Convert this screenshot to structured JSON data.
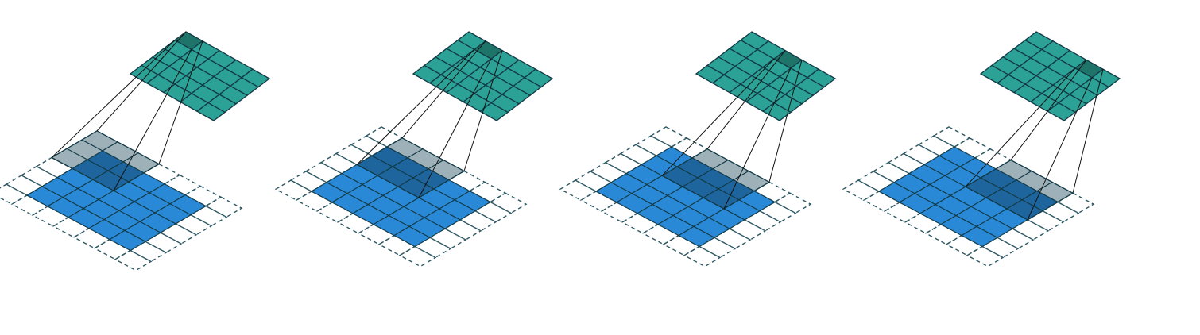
{
  "diagram": {
    "kind": "convolution-animation-frames",
    "frame_count": 4,
    "input": {
      "size": 5,
      "padding": 1,
      "padded_size": 7
    },
    "kernel": {
      "size": 3
    },
    "output": {
      "size": 5
    },
    "frames": [
      {
        "output_cell": [
          0,
          0
        ],
        "window_origin": [
          0,
          0
        ]
      },
      {
        "output_cell": [
          0,
          1
        ],
        "window_origin": [
          0,
          1
        ]
      },
      {
        "output_cell": [
          0,
          2
        ],
        "window_origin": [
          0,
          2
        ]
      },
      {
        "output_cell": [
          0,
          3
        ],
        "window_origin": [
          0,
          3
        ]
      }
    ]
  },
  "colors": {
    "input_fill": "#2a89d6",
    "input_window_fill": "#1e659e",
    "padding_window_fill": "#9eb1b9",
    "output_fill": "#2ca196",
    "output_active_fill": "#1f7469",
    "grid_stroke": "#123a46",
    "dashed_stroke": "#2e5864",
    "projection_line": "#111111"
  }
}
